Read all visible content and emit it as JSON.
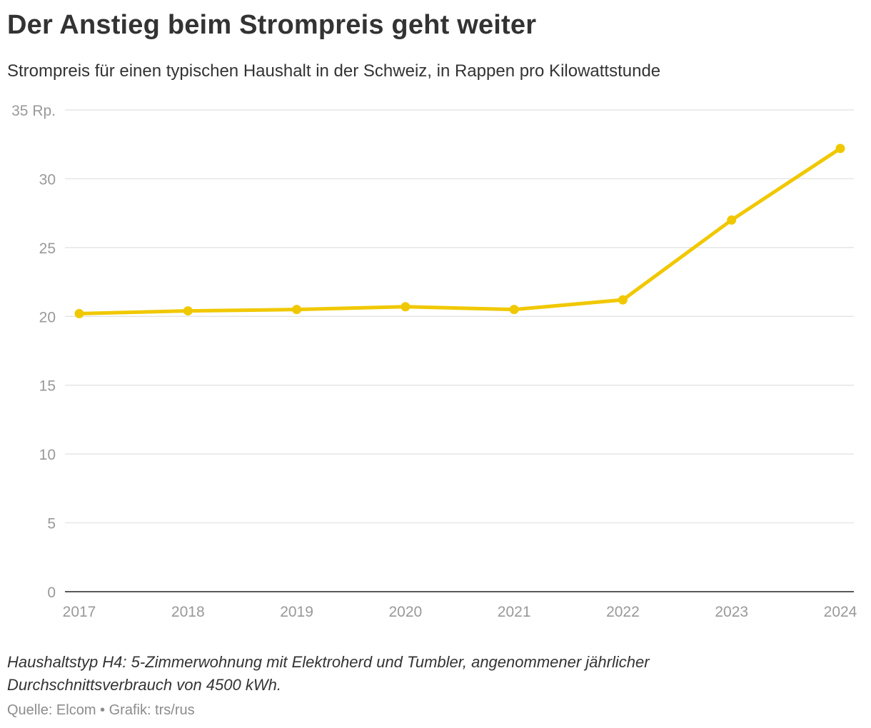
{
  "title": "Der Anstieg beim Strompreis geht weiter",
  "subtitle": "Strompreis für einen typischen Haushalt in der Schweiz, in Rappen pro Kilowattstunde",
  "footnote": "Haushaltstyp H4: 5-Zimmerwohnung mit Elektroherd und Tumbler, angenommener jährlicher Durchschnittsverbrauch von 4500 kWh.",
  "source": "Quelle: Elcom • Grafik: trs/rus",
  "chart_data": {
    "type": "line",
    "x": [
      "2017",
      "2018",
      "2019",
      "2020",
      "2021",
      "2022",
      "2023",
      "2024"
    ],
    "series": [
      {
        "values": [
          20.2,
          20.4,
          20.5,
          20.7,
          20.5,
          21.2,
          27.0,
          32.2
        ],
        "color": "#f0c800"
      }
    ],
    "ylim": [
      0,
      35
    ],
    "y_ticks": [
      0,
      5,
      10,
      15,
      20,
      25,
      30,
      35
    ],
    "y_tick_labels": [
      "0",
      "5",
      "10",
      "15",
      "20",
      "25",
      "30",
      "35 Rp."
    ],
    "grid": true,
    "gridline_color": "#e1e1e1",
    "axis_line_color": "#222222",
    "tick_label_color": "#999999"
  }
}
